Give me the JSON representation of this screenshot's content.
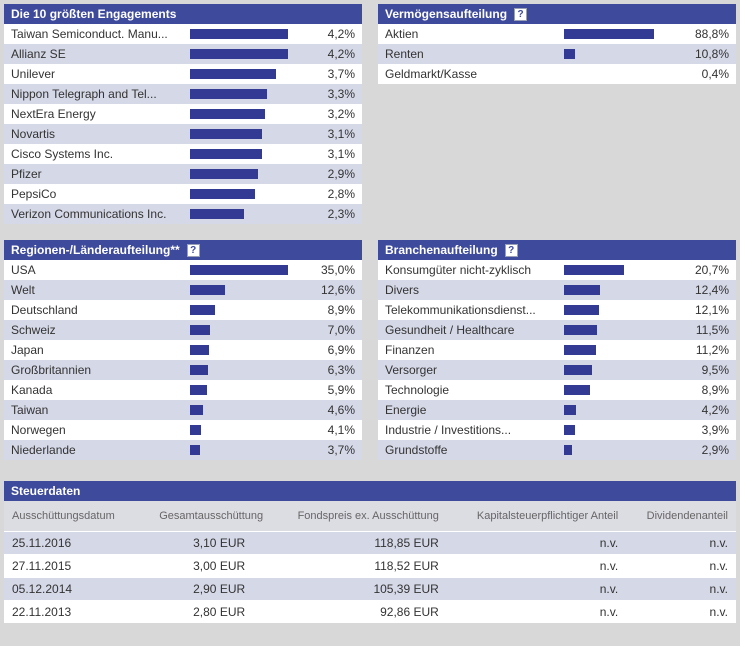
{
  "icons": {
    "help_glyph": "?"
  },
  "colors": {
    "page_background": "#d8d8d8",
    "panel_header_background": "#3e4a9c",
    "panel_header_text": "#ffffff",
    "bar_color": "#333a94",
    "row_stripe": "#d5d8e7",
    "row_plain": "#ffffff",
    "table_header_background": "#dcdce3",
    "table_header_text": "#666666",
    "text_color": "#333333"
  },
  "chart_data": [
    {
      "id": "top-holdings",
      "type": "bar",
      "orientation": "horizontal",
      "title": "Die 10 größten Engagements",
      "has_help_icon": false,
      "unit": "%",
      "categories": [
        "Taiwan Semiconduct. Manu...",
        "Allianz SE",
        "Unilever",
        "Nippon Telegraph and Tel...",
        "NextEra Energy",
        "Novartis",
        "Cisco Systems Inc.",
        "Pfizer",
        "PepsiCo",
        "Verizon Communications Inc."
      ],
      "values": [
        4.2,
        4.2,
        3.7,
        3.3,
        3.2,
        3.1,
        3.1,
        2.9,
        2.8,
        2.3
      ],
      "value_labels": [
        "4,2%",
        "4,2%",
        "3,7%",
        "3,3%",
        "3,2%",
        "3,1%",
        "3,1%",
        "2,9%",
        "2,8%",
        "2,3%"
      ]
    },
    {
      "id": "asset-allocation",
      "type": "bar",
      "orientation": "horizontal",
      "title": "Vermögensaufteilung",
      "has_help_icon": true,
      "unit": "%",
      "categories": [
        "Aktien",
        "Renten",
        "Geldmarkt/Kasse"
      ],
      "values": [
        88.8,
        10.8,
        0.4
      ],
      "value_labels": [
        "88,8%",
        "10,8%",
        "0,4%"
      ]
    },
    {
      "id": "regions-countries",
      "type": "bar",
      "orientation": "horizontal",
      "title": "Regionen-/Länderaufteilung**",
      "has_help_icon": true,
      "unit": "%",
      "categories": [
        "USA",
        "Welt",
        "Deutschland",
        "Schweiz",
        "Japan",
        "Großbritannien",
        "Kanada",
        "Taiwan",
        "Norwegen",
        "Niederlande"
      ],
      "values": [
        35.0,
        12.6,
        8.9,
        7.0,
        6.9,
        6.3,
        5.9,
        4.6,
        4.1,
        3.7
      ],
      "value_labels": [
        "35,0%",
        "12,6%",
        "8,9%",
        "7,0%",
        "6,9%",
        "6,3%",
        "5,9%",
        "4,6%",
        "4,1%",
        "3,7%"
      ]
    },
    {
      "id": "sectors",
      "type": "bar",
      "orientation": "horizontal",
      "title": "Branchenaufteilung",
      "has_help_icon": true,
      "unit": "%",
      "categories": [
        "Konsumgüter nicht-zyklisch",
        "Divers",
        "Telekommunikationsdienst...",
        "Gesundheit / Healthcare",
        "Finanzen",
        "Versorger",
        "Technologie",
        "Energie",
        "Industrie / Investitions...",
        "Grundstoffe"
      ],
      "values": [
        20.7,
        12.4,
        12.1,
        11.5,
        11.2,
        9.5,
        8.9,
        4.2,
        3.9,
        2.9
      ],
      "value_labels": [
        "20,7%",
        "12,4%",
        "12,1%",
        "11,5%",
        "11,2%",
        "9,5%",
        "8,9%",
        "4,2%",
        "3,9%",
        "2,9%"
      ]
    },
    {
      "id": "tax-data",
      "type": "table",
      "title": "Steuerdaten",
      "columns": [
        "Ausschüttungsdatum",
        "Gesamtausschüttung",
        "Fondspreis ex. Ausschüttung",
        "Kapitalsteuerpflichtiger Anteil",
        "Dividendenanteil"
      ],
      "rows": [
        [
          "25.11.2016",
          "3,10 EUR",
          "118,85 EUR",
          "n.v.",
          "n.v."
        ],
        [
          "27.11.2015",
          "3,00 EUR",
          "118,52 EUR",
          "n.v.",
          "n.v."
        ],
        [
          "05.12.2014",
          "2,90 EUR",
          "105,39 EUR",
          "n.v.",
          "n.v."
        ],
        [
          "22.11.2013",
          "2,80 EUR",
          "92,86 EUR",
          "n.v.",
          "n.v."
        ]
      ]
    }
  ]
}
